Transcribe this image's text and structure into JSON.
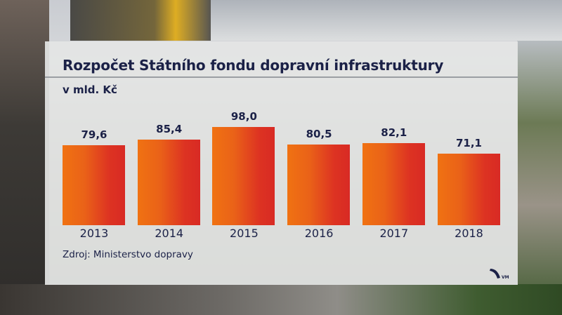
{
  "chart": {
    "title": "Rozpočet Státního fondu dopravní infrastruktury",
    "unit_label": "v mld. Kč",
    "source": "Zdroj: Ministerstvo dopravy",
    "logo_text": "VM",
    "bars": [
      {
        "year": "2013",
        "value_label": "79,6"
      },
      {
        "year": "2014",
        "value_label": "85,4"
      },
      {
        "year": "2015",
        "value_label": "98,0"
      },
      {
        "year": "2016",
        "value_label": "80,5"
      },
      {
        "year": "2017",
        "value_label": "82,1"
      },
      {
        "year": "2018",
        "value_label": "71,1"
      }
    ],
    "colors": {
      "bar_left": "#f07212",
      "bar_right": "#d82a24",
      "text": "#1b2147"
    }
  },
  "chart_data": {
    "type": "bar",
    "title": "Rozpočet Státního fondu dopravní infrastruktury",
    "subtitle": "v mld. Kč",
    "categories": [
      "2013",
      "2014",
      "2015",
      "2016",
      "2017",
      "2018"
    ],
    "values": [
      79.6,
      85.4,
      98.0,
      80.5,
      82.1,
      71.1
    ],
    "xlabel": "",
    "ylabel": "mld. Kč",
    "grid": false,
    "legend": null,
    "annotations": [
      "Zdroj: Ministerstvo dopravy"
    ],
    "data_labels": [
      "79,6",
      "85,4",
      "98,0",
      "80,5",
      "82,1",
      "71,1"
    ]
  }
}
